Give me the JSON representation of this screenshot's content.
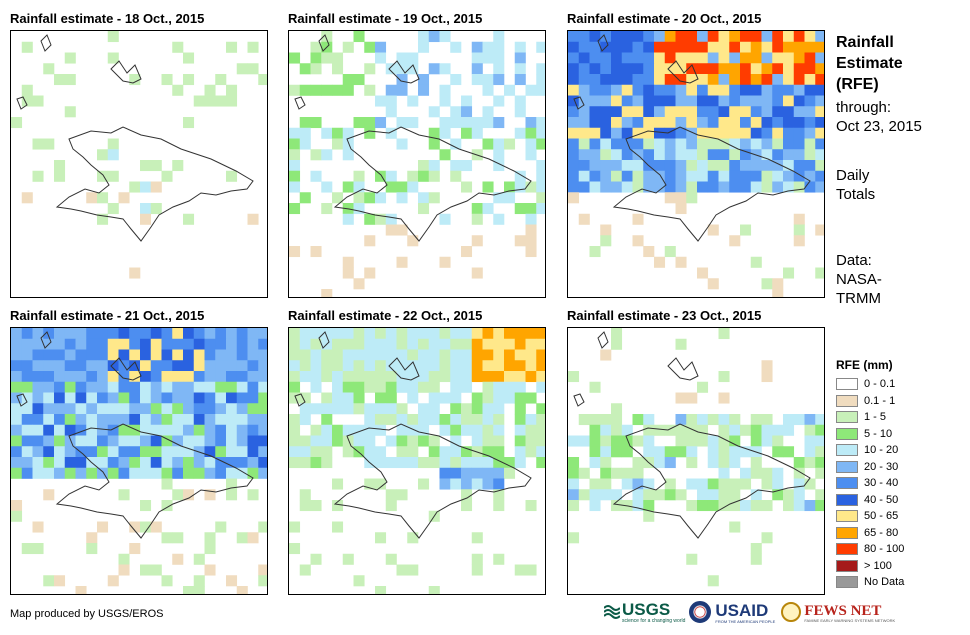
{
  "panels": [
    {
      "title": "Rainfall estimate - 18 Oct., 2015",
      "day": 0
    },
    {
      "title": "Rainfall estimate - 19 Oct., 2015",
      "day": 1
    },
    {
      "title": "Rainfall estimate - 20 Oct., 2015",
      "day": 2
    },
    {
      "title": "Rainfall estimate - 21 Oct., 2015",
      "day": 3
    },
    {
      "title": "Rainfall estimate - 22 Oct., 2015",
      "day": 4
    },
    {
      "title": "Rainfall estimate - 23 Oct., 2015",
      "day": 5
    }
  ],
  "info": {
    "title_line1": "Rainfall",
    "title_line2": "Estimate",
    "title_line3": "(RFE)",
    "through_label": "through:",
    "through_date": "Oct 23, 2015",
    "period_line1": "Daily",
    "period_line2": "Totals",
    "source_line1": "Data:",
    "source_line2": "NASA-",
    "source_line3": "TRMM"
  },
  "legend": {
    "title": "RFE (mm)",
    "items": [
      {
        "label": "0 - 0.1",
        "color": "#ffffff"
      },
      {
        "label": "0.1 - 1",
        "color": "#f0dcbf"
      },
      {
        "label": "1 - 5",
        "color": "#c8f0b9"
      },
      {
        "label": "5 - 10",
        "color": "#8ee879"
      },
      {
        "label": "10 - 20",
        "color": "#bdebf7"
      },
      {
        "label": "20 - 30",
        "color": "#7fb7f5"
      },
      {
        "label": "30 - 40",
        "color": "#4d8ef0"
      },
      {
        "label": "40 - 50",
        "color": "#2a62e0"
      },
      {
        "label": "50 - 65",
        "color": "#ffe88a"
      },
      {
        "label": "65 - 80",
        "color": "#ffa500"
      },
      {
        "label": "80 - 100",
        "color": "#ff3c00"
      },
      {
        "label": "> 100",
        "color": "#a51a1a"
      },
      {
        "label": "No Data",
        "color": "#999999"
      }
    ]
  },
  "credit": "Map produced by USGS/EROS",
  "logos": {
    "usgs": "USGS",
    "usgs_tagline": "science for a changing world",
    "usaid": "USAID",
    "usaid_tagline": "FROM THE AMERICAN PEOPLE",
    "fews": "FEWS NET",
    "fews_tagline": "FAMINE EARLY WARNING SYSTEMS NETWORK"
  }
}
